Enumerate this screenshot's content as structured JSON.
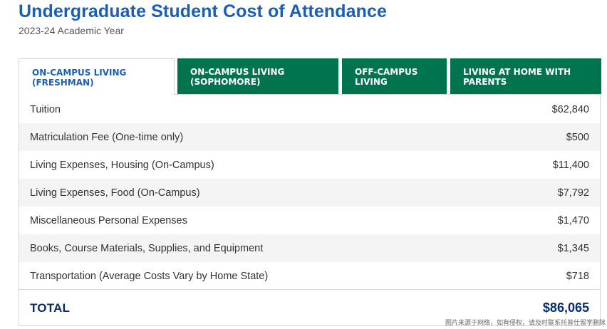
{
  "header": {
    "title": "Undergraduate Student Cost of Attendance",
    "subtitle": "2023-24 Academic Year"
  },
  "tabs": [
    {
      "line1": "ON-CAMPUS LIVING",
      "line2": "(FRESHMAN)",
      "active": true
    },
    {
      "line1": "ON-CAMPUS LIVING",
      "line2": "(SOPHOMORE)",
      "active": false
    },
    {
      "line1": "OFF-CAMPUS",
      "line2": "LIVING",
      "active": false
    },
    {
      "line1": "LIVING AT HOME WITH",
      "line2": "PARENTS",
      "active": false
    }
  ],
  "rows": [
    {
      "label": "Tuition",
      "amount": "$62,840"
    },
    {
      "label": "Matriculation Fee (One-time only)",
      "amount": "$500"
    },
    {
      "label": "Living Expenses, Housing (On-Campus)",
      "amount": "$11,400"
    },
    {
      "label": "Living Expenses, Food (On-Campus)",
      "amount": "$7,792"
    },
    {
      "label": "Miscellaneous Personal Expenses",
      "amount": "$1,470"
    },
    {
      "label": "Books, Course Materials, Supplies, and Equipment",
      "amount": "$1,345"
    },
    {
      "label": "Transportation (Average Costs Vary by Home State)",
      "amount": "$718"
    }
  ],
  "total": {
    "label": "TOTAL",
    "amount": "$86,065"
  },
  "watermark": "图片来源于网络，如有侵权，请及时联系托普仕留学删除",
  "colors": {
    "title": "#1a5fb4",
    "tab_bg": "#00734f",
    "total": "#0a2d6e",
    "shade": "#f4f4f4"
  }
}
